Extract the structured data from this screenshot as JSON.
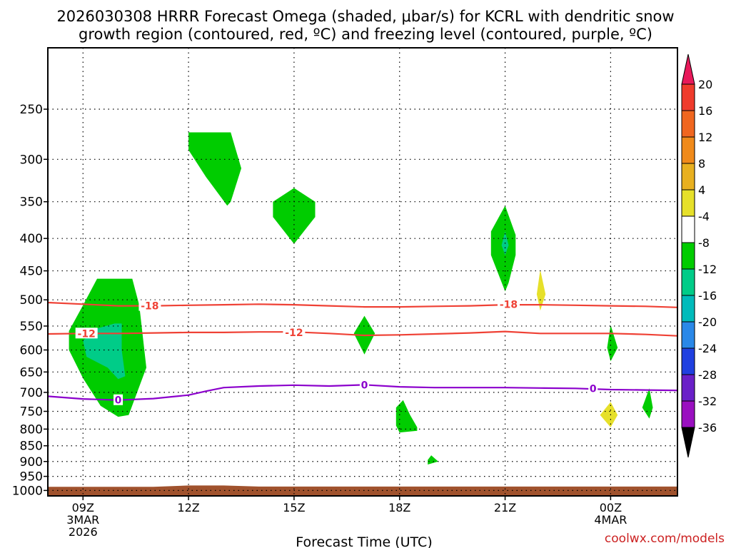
{
  "chart_data": {
    "type": "heatmap",
    "title": [
      "2026030308 HRRR Forecast Omega (shaded, μbar/s) for KCRL with dendritic snow",
      "growth region (contoured, red, ºC) and freezing level (contoured, purple, ºC)"
    ],
    "xlabel": "Forecast Time (UTC)",
    "credit": "coolwx.com/models",
    "x_range_hours": [
      8,
      25.9
    ],
    "y_range_hpa": [
      1020,
      200
    ],
    "y_scale": "log-pressure",
    "grid": true,
    "x_ticks": [
      {
        "hour": 9,
        "lines": [
          "09Z",
          "3MAR",
          "2026"
        ]
      },
      {
        "hour": 12,
        "lines": [
          "12Z"
        ]
      },
      {
        "hour": 15,
        "lines": [
          "15Z"
        ]
      },
      {
        "hour": 18,
        "lines": [
          "18Z"
        ]
      },
      {
        "hour": 21,
        "lines": [
          "21Z"
        ]
      },
      {
        "hour": 24,
        "lines": [
          "00Z",
          "4MAR"
        ]
      }
    ],
    "y_ticks": [
      250,
      300,
      350,
      400,
      450,
      500,
      550,
      600,
      650,
      700,
      750,
      800,
      850,
      900,
      950,
      1000
    ],
    "colorbar": {
      "labels": [
        "20",
        "16",
        "12",
        "8",
        "4",
        "-4",
        "-8",
        "-12",
        "-16",
        "-20",
        "-24",
        "-28",
        "-32",
        "-36"
      ],
      "colors": [
        "#e8195a",
        "#ef3b2c",
        "#f0661f",
        "#f08a1a",
        "#e8b020",
        "#e6e02a",
        "#ffffff",
        "#00cc00",
        "#00cc88",
        "#00bbbb",
        "#2a88e8",
        "#2040e0",
        "#6a20c8",
        "#9a10c0",
        "#a0a0a0",
        "#000000"
      ]
    },
    "contours": [
      {
        "name": "-18",
        "color": "#ef4135",
        "points": [
          [
            8,
            505
          ],
          [
            9,
            508
          ],
          [
            10,
            511
          ],
          [
            11,
            511
          ],
          [
            12,
            510
          ],
          [
            13,
            509
          ],
          [
            14,
            508
          ],
          [
            15,
            509
          ],
          [
            16,
            511
          ],
          [
            17,
            513
          ],
          [
            18,
            513
          ],
          [
            19,
            512
          ],
          [
            20,
            511
          ],
          [
            21,
            509
          ],
          [
            22,
            509
          ],
          [
            23,
            510
          ],
          [
            24,
            511
          ],
          [
            25,
            512
          ],
          [
            25.9,
            514
          ]
        ],
        "labels": [
          {
            "hour": 10.9,
            "hpa": 511,
            "text": "-18"
          },
          {
            "hour": 21.1,
            "hpa": 508,
            "text": "-18"
          }
        ]
      },
      {
        "name": "-12",
        "color": "#ef4135",
        "points": [
          [
            8,
            566
          ],
          [
            9,
            565
          ],
          [
            10,
            565
          ],
          [
            11,
            564
          ],
          [
            12,
            563
          ],
          [
            13,
            563
          ],
          [
            14,
            562
          ],
          [
            15,
            562
          ],
          [
            16,
            565
          ],
          [
            17,
            569
          ],
          [
            18,
            568
          ],
          [
            19,
            566
          ],
          [
            20,
            564
          ],
          [
            21,
            561
          ],
          [
            22,
            565
          ],
          [
            23,
            565
          ],
          [
            24,
            565
          ],
          [
            25,
            567
          ],
          [
            25.9,
            570
          ]
        ],
        "labels": [
          {
            "hour": 9.1,
            "hpa": 565,
            "text": "-12"
          },
          {
            "hour": 15,
            "hpa": 563,
            "text": "-12"
          }
        ]
      },
      {
        "name": "0",
        "color": "#8b00cc",
        "points": [
          [
            8,
            710
          ],
          [
            9,
            717
          ],
          [
            10,
            720
          ],
          [
            11,
            716
          ],
          [
            12,
            707
          ],
          [
            12.5,
            697
          ],
          [
            13,
            688
          ],
          [
            14,
            684
          ],
          [
            15,
            682
          ],
          [
            16,
            684
          ],
          [
            17,
            681
          ],
          [
            18,
            686
          ],
          [
            19,
            688
          ],
          [
            20,
            688
          ],
          [
            21,
            688
          ],
          [
            22,
            689
          ],
          [
            23,
            690
          ],
          [
            24,
            693
          ],
          [
            25,
            694
          ],
          [
            25.9,
            695
          ]
        ],
        "labels": [
          {
            "hour": 10,
            "hpa": 720,
            "text": "0"
          },
          {
            "hour": 17,
            "hpa": 681,
            "text": "0"
          },
          {
            "hour": 23.5,
            "hpa": 690,
            "text": "0"
          }
        ]
      }
    ],
    "shaded_regions": [
      {
        "value": "-4 to -8",
        "color": "#00cc00",
        "points": [
          [
            9.4,
            463
          ],
          [
            10.4,
            463
          ],
          [
            10.6,
            510
          ],
          [
            10.8,
            640
          ],
          [
            10.3,
            760
          ],
          [
            10,
            765
          ],
          [
            9.5,
            735
          ],
          [
            9,
            665
          ],
          [
            8.6,
            600
          ],
          [
            8.6,
            560
          ],
          [
            9,
            510
          ]
        ]
      },
      {
        "value": "-8 to -12",
        "color": "#00cc88",
        "points": [
          [
            9.9,
            545
          ],
          [
            10.1,
            545
          ],
          [
            10.1,
            600
          ],
          [
            10.2,
            660
          ],
          [
            10,
            667
          ],
          [
            9.7,
            640
          ],
          [
            9.1,
            615
          ],
          [
            9,
            580
          ],
          [
            9.4,
            555
          ]
        ]
      },
      {
        "value": "-4 to -8",
        "color": "#00cc00",
        "points": [
          [
            12,
            272
          ],
          [
            13.2,
            272
          ],
          [
            13.5,
            310
          ],
          [
            13.2,
            350
          ],
          [
            13.1,
            355
          ],
          [
            12.5,
            320
          ],
          [
            12,
            290
          ]
        ]
      },
      {
        "value": "-4 to -8",
        "color": "#00cc00",
        "points": [
          [
            15,
            333
          ],
          [
            15.6,
            350
          ],
          [
            15.6,
            370
          ],
          [
            15,
            408
          ],
          [
            14.4,
            370
          ],
          [
            14.4,
            350
          ]
        ]
      },
      {
        "value": "-4 to -8",
        "color": "#00cc00",
        "points": [
          [
            17,
            530
          ],
          [
            17.3,
            565
          ],
          [
            17,
            610
          ],
          [
            16.7,
            565
          ]
        ]
      },
      {
        "value": "-4 to -8",
        "color": "#00cc00",
        "points": [
          [
            18.1,
            720
          ],
          [
            18.3,
            760
          ],
          [
            18.5,
            795
          ],
          [
            18.5,
            805
          ],
          [
            18,
            810
          ],
          [
            17.9,
            790
          ],
          [
            17.9,
            740
          ]
        ]
      },
      {
        "value": "-4 to -8",
        "color": "#00cc00",
        "points": [
          [
            18.9,
            880
          ],
          [
            19.1,
            900
          ],
          [
            18.8,
            910
          ],
          [
            18.8,
            895
          ]
        ]
      },
      {
        "value": "-4 to -8",
        "color": "#00cc00",
        "points": [
          [
            21,
            355
          ],
          [
            21.3,
            395
          ],
          [
            21.3,
            425
          ],
          [
            21.1,
            470
          ],
          [
            21,
            485
          ],
          [
            20.6,
            425
          ],
          [
            20.6,
            390
          ]
        ]
      },
      {
        "value": "-8 to -12",
        "color": "#00cc88",
        "points": [
          [
            21,
            390
          ],
          [
            21.1,
            410
          ],
          [
            21,
            425
          ],
          [
            20.9,
            410
          ]
        ]
      },
      {
        "value": "4 to 8",
        "color": "#e6e02a",
        "points": [
          [
            22,
            448
          ],
          [
            22.15,
            490
          ],
          [
            22,
            520
          ],
          [
            21.9,
            490
          ]
        ]
      },
      {
        "value": "-4 to -8",
        "color": "#00cc00",
        "points": [
          [
            24,
            548
          ],
          [
            24.2,
            595
          ],
          [
            24,
            625
          ],
          [
            23.9,
            595
          ]
        ]
      },
      {
        "value": "4 to 8",
        "color": "#e6e02a",
        "points": [
          [
            24,
            725
          ],
          [
            24.2,
            760
          ],
          [
            24,
            795
          ],
          [
            23.7,
            760
          ]
        ]
      },
      {
        "value": "-4 to -8",
        "color": "#00cc00",
        "points": [
          [
            25.1,
            690
          ],
          [
            25.2,
            740
          ],
          [
            25.1,
            770
          ],
          [
            24.9,
            740
          ]
        ]
      }
    ],
    "ground": {
      "color": "#a0522d",
      "points": [
        [
          8,
          987
        ],
        [
          11,
          987
        ],
        [
          12,
          982
        ],
        [
          13,
          982
        ],
        [
          14,
          986
        ],
        [
          25.9,
          986
        ]
      ]
    }
  }
}
